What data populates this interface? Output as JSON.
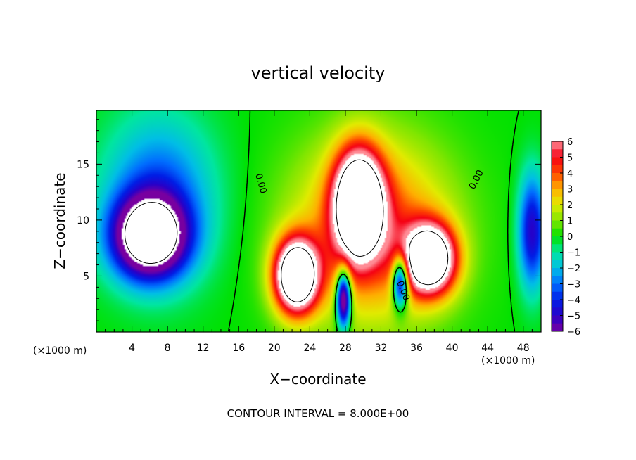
{
  "chart_data": {
    "type": "heatmap",
    "title": "vertical velocity",
    "xlabel": "X−coordinate",
    "ylabel": "Z−coordinate",
    "x_unit": "(×1000 m)",
    "y_unit": "(×1000 m)",
    "xlim": [
      0,
      50
    ],
    "ylim": [
      0,
      19.8
    ],
    "x_ticks": [
      4,
      8,
      12,
      16,
      20,
      24,
      28,
      32,
      36,
      40,
      44,
      48
    ],
    "y_ticks": [
      5,
      10,
      15
    ],
    "colorbar": {
      "range": [
        -6,
        6
      ],
      "ticks": [
        "6",
        "5",
        "4",
        "3",
        "2",
        "1",
        "0",
        "−1",
        "−2",
        "−3",
        "−4",
        "−5",
        "−6"
      ]
    },
    "contour_labels": [
      "0.00",
      "0.00",
      "0.00"
    ],
    "footer": "CONTOUR INTERVAL = 8.000E+00",
    "features": [
      {
        "kind": "updraft",
        "x": 22.5,
        "z": 5.0,
        "sx": 2.4,
        "sz": 3.2,
        "amp": 12
      },
      {
        "kind": "updraft",
        "x": 29.5,
        "z": 11.5,
        "sx": 2.6,
        "sz": 4.5,
        "amp": 12
      },
      {
        "kind": "updraft",
        "x": 37.5,
        "z": 6.5,
        "sx": 2.8,
        "sz": 3.0,
        "amp": 11
      },
      {
        "kind": "downdraft",
        "x": 6.0,
        "z": 8.5,
        "sx": 4.0,
        "sz": 3.5,
        "amp": -10
      },
      {
        "kind": "downdraft",
        "x": 49.0,
        "z": 9.0,
        "sx": 1.5,
        "sz": 5.0,
        "amp": -5
      }
    ]
  }
}
